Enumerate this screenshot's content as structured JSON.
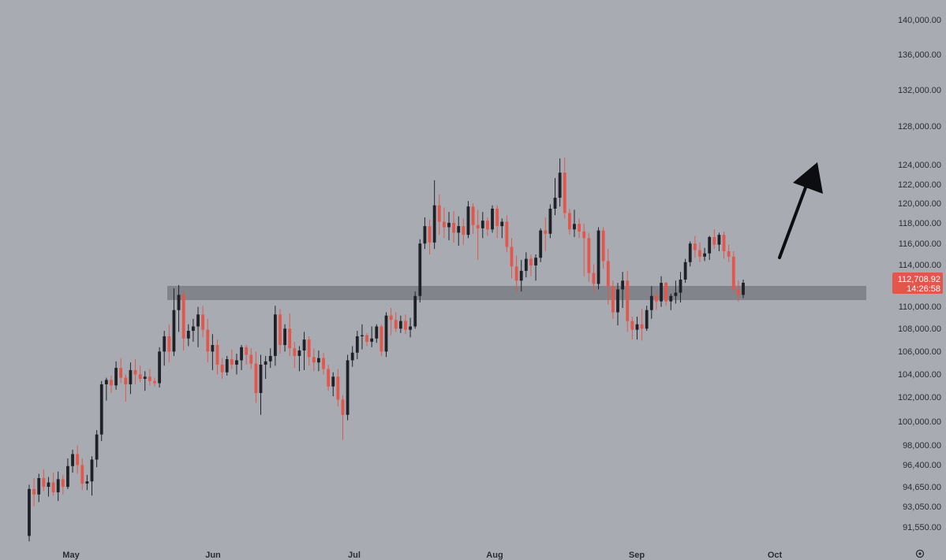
{
  "chart_data": {
    "type": "candlestick",
    "x_months": [
      "May",
      "Jun",
      "Jul",
      "Aug",
      "Sep",
      "Oct"
    ],
    "y_ticks": [
      "140,000.00",
      "136,000.00",
      "132,000.00",
      "128,000.00",
      "124,000.00",
      "122,000.00",
      "120,000.00",
      "118,000.00",
      "116,000.00",
      "114,000.00",
      "110,000.00",
      "108,000.00",
      "106,000.00",
      "104,000.00",
      "102,000.00",
      "100,000.00",
      "98,000.00",
      "96,400.00",
      "94,650.00",
      "93,050.00",
      "91,550.00"
    ],
    "current_price": "112,708.92",
    "countdown": "14:26:58",
    "support_zone": [
      111000,
      112500
    ],
    "colors": {
      "up": "#1f2128",
      "down": "#e2564b",
      "background": "#a9abb3",
      "zone": "#7d7f86",
      "badge": "#e2564b",
      "arrow": "#0c0d10"
    },
    "candles": [
      [
        89500,
        94200,
        89000,
        93800
      ],
      [
        93800,
        94800,
        92200,
        93300
      ],
      [
        93300,
        95200,
        92600,
        94800
      ],
      [
        94800,
        95600,
        93600,
        94000
      ],
      [
        94000,
        94900,
        93100,
        94400
      ],
      [
        94400,
        95300,
        93200,
        93500
      ],
      [
        93500,
        95400,
        92700,
        94700
      ],
      [
        94700,
        95100,
        93300,
        94000
      ],
      [
        94000,
        96600,
        93800,
        95900
      ],
      [
        95900,
        97400,
        95300,
        97000
      ],
      [
        97000,
        97800,
        95200,
        96000
      ],
      [
        96000,
        96600,
        93700,
        94300
      ],
      [
        94300,
        95100,
        93700,
        94500
      ],
      [
        94500,
        96800,
        93200,
        96500
      ],
      [
        96500,
        99200,
        95800,
        98800
      ],
      [
        98800,
        103700,
        98200,
        103400
      ],
      [
        103400,
        104000,
        101900,
        103800
      ],
      [
        103800,
        104200,
        102600,
        103300
      ],
      [
        103300,
        105500,
        102900,
        104900
      ],
      [
        104900,
        105800,
        103500,
        104000
      ],
      [
        104000,
        104300,
        101800,
        103400
      ],
      [
        103400,
        105400,
        102500,
        104700
      ],
      [
        104700,
        105700,
        103400,
        104300
      ],
      [
        104300,
        105100,
        103600,
        103900
      ],
      [
        103900,
        104600,
        102800,
        104100
      ],
      [
        104100,
        104800,
        103300,
        103700
      ],
      [
        103700,
        104000,
        103200,
        103500
      ],
      [
        103500,
        106800,
        103100,
        106400
      ],
      [
        106400,
        108300,
        105100,
        107800
      ],
      [
        107800,
        108900,
        105400,
        106400
      ],
      [
        106400,
        112200,
        106000,
        110200
      ],
      [
        110200,
        112500,
        108200,
        111600
      ],
      [
        111600,
        112000,
        106500,
        107600
      ],
      [
        107600,
        108900,
        106900,
        108300
      ],
      [
        108300,
        109400,
        107300,
        108700
      ],
      [
        108700,
        110500,
        106800,
        109800
      ],
      [
        109800,
        110600,
        107700,
        108400
      ],
      [
        108400,
        109400,
        105400,
        106400
      ],
      [
        106400,
        108000,
        104700,
        107000
      ],
      [
        107000,
        107500,
        104300,
        105200
      ],
      [
        105200,
        105800,
        103900,
        104500
      ],
      [
        104500,
        106000,
        104200,
        105700
      ],
      [
        105700,
        106600,
        104800,
        105200
      ],
      [
        105200,
        106200,
        104300,
        105600
      ],
      [
        105600,
        107000,
        104700,
        106800
      ],
      [
        106800,
        107000,
        105200,
        106100
      ],
      [
        106100,
        106700,
        104800,
        105300
      ],
      [
        105300,
        106400,
        101700,
        102600
      ],
      [
        102600,
        106100,
        100600,
        105200
      ],
      [
        105200,
        106000,
        103900,
        105500
      ],
      [
        105500,
        106700,
        104900,
        106000
      ],
      [
        106000,
        110600,
        105100,
        109800
      ],
      [
        109800,
        110300,
        106200,
        107000
      ],
      [
        107000,
        108900,
        106400,
        108500
      ],
      [
        108500,
        109900,
        106000,
        106700
      ],
      [
        106700,
        107300,
        104900,
        106000
      ],
      [
        106000,
        106900,
        104600,
        106500
      ],
      [
        106500,
        108200,
        104700,
        107500
      ],
      [
        107500,
        107800,
        105100,
        105900
      ],
      [
        105900,
        106700,
        104600,
        105400
      ],
      [
        105400,
        106500,
        104600,
        105800
      ],
      [
        105800,
        106300,
        104300,
        104800
      ],
      [
        104800,
        105200,
        102800,
        103200
      ],
      [
        103200,
        104500,
        102300,
        104100
      ],
      [
        104100,
        104800,
        101400,
        102000
      ],
      [
        102000,
        102400,
        98300,
        100600
      ],
      [
        100600,
        106100,
        100100,
        105600
      ],
      [
        105600,
        106900,
        105000,
        106300
      ],
      [
        106300,
        108300,
        105700,
        107800
      ],
      [
        107800,
        108900,
        106600,
        107900
      ],
      [
        107900,
        108100,
        106900,
        107300
      ],
      [
        107300,
        108700,
        106800,
        107600
      ],
      [
        107600,
        108900,
        107200,
        108700
      ],
      [
        108700,
        108900,
        106000,
        106400
      ],
      [
        106400,
        110000,
        105900,
        109700
      ],
      [
        109700,
        110400,
        107900,
        109300
      ],
      [
        109300,
        110000,
        108200,
        108500
      ],
      [
        108500,
        109700,
        108100,
        109200
      ],
      [
        109200,
        109800,
        108000,
        108400
      ],
      [
        108400,
        109500,
        107700,
        108700
      ],
      [
        108700,
        111900,
        108500,
        111500
      ],
      [
        111500,
        116700,
        110900,
        116300
      ],
      [
        116300,
        118700,
        115800,
        117900
      ],
      [
        117900,
        118500,
        115300,
        116400
      ],
      [
        116400,
        122100,
        115800,
        119800
      ],
      [
        119800,
        120800,
        117100,
        118300
      ],
      [
        118300,
        119600,
        116800,
        117800
      ],
      [
        117800,
        119200,
        116600,
        118200
      ],
      [
        118200,
        119300,
        116400,
        117300
      ],
      [
        117300,
        118800,
        116100,
        117900
      ],
      [
        117900,
        118600,
        116200,
        117100
      ],
      [
        117100,
        120200,
        116800,
        119700
      ],
      [
        119700,
        120000,
        117200,
        118000
      ],
      [
        118000,
        119400,
        114800,
        117700
      ],
      [
        117700,
        119200,
        116800,
        118400
      ],
      [
        118400,
        118700,
        117000,
        117600
      ],
      [
        117600,
        119800,
        117300,
        119500
      ],
      [
        119500,
        119800,
        116800,
        117900
      ],
      [
        117900,
        118600,
        116800,
        118300
      ],
      [
        118300,
        118900,
        115500,
        116000
      ],
      [
        116000,
        116800,
        113100,
        114200
      ],
      [
        114200,
        115200,
        111900,
        112900
      ],
      [
        112900,
        114800,
        111900,
        113800
      ],
      [
        113800,
        115500,
        113200,
        114900
      ],
      [
        114900,
        115300,
        113300,
        114300
      ],
      [
        114300,
        115300,
        112900,
        115000
      ],
      [
        115000,
        117700,
        114600,
        117500
      ],
      [
        117500,
        118700,
        115600,
        117200
      ],
      [
        117200,
        119900,
        116800,
        119500
      ],
      [
        119500,
        122300,
        118900,
        120500
      ],
      [
        120500,
        124100,
        119700,
        122800
      ],
      [
        122800,
        124200,
        118600,
        119100
      ],
      [
        119100,
        119500,
        117100,
        117600
      ],
      [
        117600,
        119400,
        116900,
        118100
      ],
      [
        118100,
        118600,
        116800,
        117400
      ],
      [
        117400,
        118100,
        113300,
        116800
      ],
      [
        116800,
        117300,
        112800,
        113600
      ],
      [
        113600,
        114400,
        111800,
        112600
      ],
      [
        112600,
        117800,
        112100,
        117500
      ],
      [
        117500,
        117800,
        114000,
        114700
      ],
      [
        114700,
        115800,
        110700,
        112400
      ],
      [
        112400,
        112900,
        109400,
        110000
      ],
      [
        110000,
        112700,
        108800,
        112100
      ],
      [
        112100,
        113700,
        110400,
        112900
      ],
      [
        112900,
        113800,
        108200,
        109200
      ],
      [
        109200,
        109600,
        107500,
        108400
      ],
      [
        108400,
        109600,
        107500,
        108900
      ],
      [
        108900,
        110300,
        107400,
        108500
      ],
      [
        108500,
        110600,
        108300,
        110200
      ],
      [
        110200,
        112400,
        109400,
        111500
      ],
      [
        111500,
        111900,
        110200,
        111000
      ],
      [
        111000,
        113300,
        110500,
        112700
      ],
      [
        112700,
        112800,
        110600,
        111000
      ],
      [
        111000,
        111700,
        110200,
        111500
      ],
      [
        111500,
        112900,
        110800,
        111800
      ],
      [
        111800,
        113700,
        110900,
        113000
      ],
      [
        113000,
        114900,
        112700,
        114600
      ],
      [
        114600,
        116500,
        114200,
        116300
      ],
      [
        116300,
        117000,
        115000,
        115700
      ],
      [
        115700,
        116400,
        114600,
        115100
      ],
      [
        115100,
        115900,
        114700,
        115400
      ],
      [
        115400,
        117000,
        114800,
        116900
      ],
      [
        116900,
        117600,
        115800,
        116200
      ],
      [
        116200,
        117300,
        115600,
        117100
      ],
      [
        117100,
        117400,
        114900,
        115600
      ],
      [
        115600,
        116200,
        114600,
        115100
      ],
      [
        115100,
        115600,
        111800,
        112100
      ],
      [
        112100,
        112900,
        111000,
        111600
      ],
      [
        111600,
        113000,
        111300,
        112708.92
      ]
    ]
  }
}
